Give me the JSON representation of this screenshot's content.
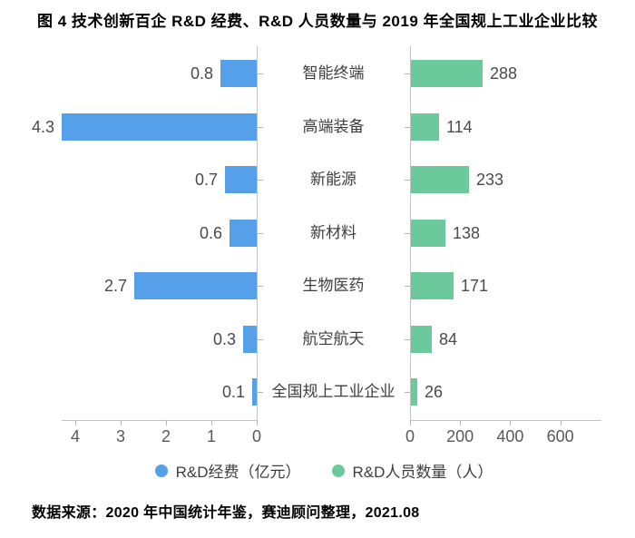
{
  "title": "图 4  技术创新百企 R&D 经费、R&D 人员数量与 2019 年全国规上工业企业比较",
  "source": "数据来源：2020 年中国统计年鉴，赛迪顾问整理，2021.08",
  "chart_data": {
    "type": "bar",
    "orientation": "horizontal",
    "layout": "back-to-back tornado, shared category labels in center, left axis reversed",
    "categories": [
      "智能终端",
      "高端装备",
      "新能源",
      "新材料",
      "生物医药",
      "航空航天",
      "全国规上工业企业"
    ],
    "series": [
      {
        "name": "R&D经费（亿元）",
        "color": "#55a0e8",
        "direction": "left",
        "values": [
          0.8,
          4.3,
          0.7,
          0.6,
          2.7,
          0.3,
          0.1
        ],
        "axis_ticks": [
          4,
          3,
          2,
          1,
          0
        ],
        "axis_range": [
          0,
          4.3
        ]
      },
      {
        "name": "R&D人员数量（人）",
        "color": "#6cc99b",
        "direction": "right",
        "values": [
          288,
          114,
          233,
          138,
          171,
          84,
          26
        ],
        "axis_ticks": [
          0,
          200,
          400,
          600
        ],
        "axis_range": [
          0,
          760
        ]
      }
    ],
    "grid": false,
    "legend_position": "bottom",
    "value_labels": true,
    "axis_color": "#c3c3c3",
    "text_color": "#4a4a4a"
  }
}
